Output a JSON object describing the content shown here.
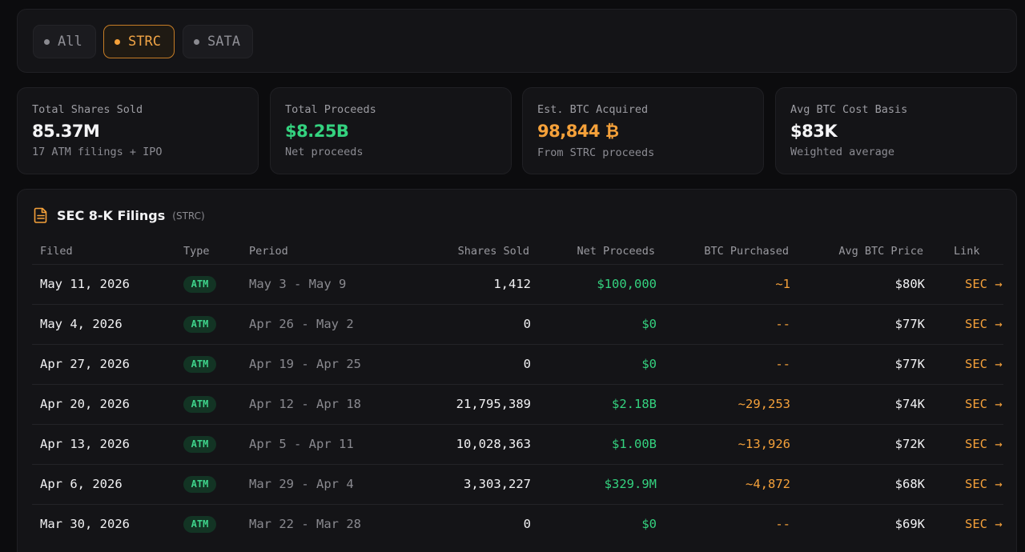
{
  "filters": [
    {
      "label": "All",
      "active": false
    },
    {
      "label": "STRC",
      "active": true
    },
    {
      "label": "SATA",
      "active": false
    }
  ],
  "stats": [
    {
      "label": "Total Shares Sold",
      "value": "85.37M",
      "sub": "17 ATM filings + IPO",
      "color": "#f4f4f6"
    },
    {
      "label": "Total Proceeds",
      "value": "$8.25B",
      "sub": "Net proceeds",
      "color": "#34d27f"
    },
    {
      "label": "Est. BTC Acquired",
      "value": "98,844 ₿",
      "sub": "From STRC proceeds",
      "color": "#f5a13a"
    },
    {
      "label": "Avg BTC Cost Basis",
      "value": "$83K",
      "sub": "Weighted average",
      "color": "#f4f4f6"
    }
  ],
  "filings": {
    "title": "SEC 8-K Filings",
    "tag": "(STRC)",
    "icon": "document-icon",
    "columns": [
      "Filed",
      "Type",
      "Period",
      "Shares Sold",
      "Net Proceeds",
      "BTC Purchased",
      "Avg BTC Price",
      "Link"
    ],
    "rows": [
      {
        "filed": "May 11, 2026",
        "type": "ATM",
        "period": "May 3 - May 9",
        "shares": "1,412",
        "net": "$100,000",
        "btc": "~1",
        "avg": "$80K",
        "link": "SEC →"
      },
      {
        "filed": "May 4, 2026",
        "type": "ATM",
        "period": "Apr 26 - May 2",
        "shares": "0",
        "net": "$0",
        "btc": "--",
        "avg": "$77K",
        "link": "SEC →"
      },
      {
        "filed": "Apr 27, 2026",
        "type": "ATM",
        "period": "Apr 19 - Apr 25",
        "shares": "0",
        "net": "$0",
        "btc": "--",
        "avg": "$77K",
        "link": "SEC →"
      },
      {
        "filed": "Apr 20, 2026",
        "type": "ATM",
        "period": "Apr 12 - Apr 18",
        "shares": "21,795,389",
        "net": "$2.18B",
        "btc": "~29,253",
        "avg": "$74K",
        "link": "SEC →"
      },
      {
        "filed": "Apr 13, 2026",
        "type": "ATM",
        "period": "Apr 5 - Apr 11",
        "shares": "10,028,363",
        "net": "$1.00B",
        "btc": "~13,926",
        "avg": "$72K",
        "link": "SEC →"
      },
      {
        "filed": "Apr 6, 2026",
        "type": "ATM",
        "period": "Mar 29 - Apr 4",
        "shares": "3,303,227",
        "net": "$329.9M",
        "btc": "~4,872",
        "avg": "$68K",
        "link": "SEC →"
      },
      {
        "filed": "Mar 30, 2026",
        "type": "ATM",
        "period": "Mar 22 - Mar 28",
        "shares": "0",
        "net": "$0",
        "btc": "--",
        "avg": "$69K",
        "link": "SEC →"
      }
    ]
  },
  "colors": {
    "accent": "#f5a13a",
    "positive": "#34d27f",
    "badge_text": "#3ed38b"
  }
}
